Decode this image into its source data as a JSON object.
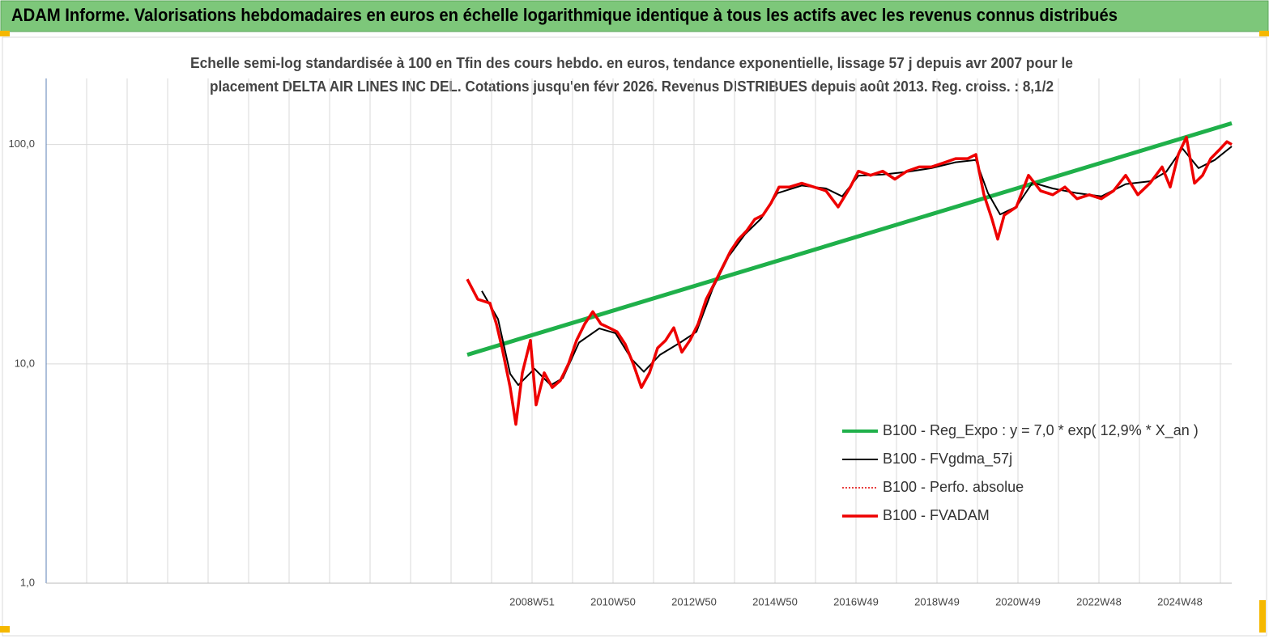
{
  "chart_data": {
    "type": "line",
    "title": "ADAM Informe. Valorisations hebdomadaires en euros en échelle logarithmique identique à tous les actifs avec les revenus connus distribués",
    "subtitle": [
      "Echelle semi-log standardisée à 100 en Tfin des cours hebdo. en euros, tendance exponentielle, lissage 57 j depuis avr 2007 pour le",
      "placement DELTA AIR LINES INC DEL. Cotations jusqu'en févr 2026. Revenus DISTRIBUES depuis août 2013. Reg. croiss. : 8,1/2"
    ],
    "log_y": true,
    "grid": true,
    "legend": "lower-right",
    "xlim": [
      1996.97,
      2026.25
    ],
    "ylim": [
      1,
      200
    ],
    "yticks": [
      {
        "value": 1,
        "label": "1,0"
      },
      {
        "value": 10,
        "label": "10,0"
      },
      {
        "value": 100,
        "label": "100,0"
      }
    ],
    "xticks": [
      {
        "value": 2008.97,
        "label": "2008W51"
      },
      {
        "value": 2010.97,
        "label": "2010W50"
      },
      {
        "value": 2012.97,
        "label": "2012W50"
      },
      {
        "value": 2014.97,
        "label": "2014W50"
      },
      {
        "value": 2016.97,
        "label": "2016W49"
      },
      {
        "value": 2018.97,
        "label": "2018W49"
      },
      {
        "value": 2020.97,
        "label": "2020W49"
      },
      {
        "value": 2022.97,
        "label": "2022W48"
      },
      {
        "value": 2024.97,
        "label": "2024W48"
      }
    ],
    "x_gridlines": [
      1997.97,
      1998.97,
      1999.97,
      2000.97,
      2001.97,
      2002.97,
      2003.97,
      2004.97,
      2005.97,
      2006.97,
      2007.97,
      2008.97,
      2009.97,
      2010.97,
      2011.97,
      2012.97,
      2013.97,
      2014.97,
      2015.97,
      2016.97,
      2017.97,
      2018.97,
      2019.97,
      2020.97,
      2021.97,
      2022.97,
      2023.97,
      2024.97,
      2025.97
    ],
    "series": [
      {
        "name": "B100 - Reg_Expo : y = 7,0 * exp( 12,9% *  X_an )",
        "color": "#1fb04a",
        "width": 5,
        "x": [
          2007.37,
          2026.25
        ],
        "values": [
          11,
          125
        ]
      },
      {
        "name": "B100 - FVgdma_57j",
        "color": "#000000",
        "width": 2,
        "x": [
          2007.73,
          2008.13,
          2008.43,
          2008.63,
          2009.03,
          2009.43,
          2009.73,
          2010.13,
          2010.63,
          2011.03,
          2011.43,
          2011.73,
          2012.13,
          2012.63,
          2013.03,
          2013.43,
          2013.83,
          2014.23,
          2014.63,
          2015.03,
          2015.63,
          2016.23,
          2016.63,
          2017.03,
          2017.63,
          2018.23,
          2018.83,
          2019.43,
          2019.93,
          2020.23,
          2020.53,
          2020.93,
          2021.33,
          2021.83,
          2022.43,
          2023.03,
          2023.63,
          2024.23,
          2024.63,
          2025.03,
          2025.43,
          2025.83,
          2026.25
        ],
        "values": [
          21.5,
          16,
          9,
          8,
          9.5,
          8,
          8.6,
          12.5,
          14.5,
          13.8,
          10.5,
          9.2,
          11,
          12.5,
          14,
          22,
          31,
          39,
          46,
          60,
          65,
          63,
          58,
          72,
          73,
          75,
          78,
          83,
          85,
          60,
          48,
          52,
          67,
          63,
          60,
          58,
          66,
          68,
          75,
          96,
          78,
          85,
          98
        ]
      },
      {
        "name": "B100 - Perfo. absolue",
        "color": "#e00000",
        "width": 1.5,
        "dash": "2 2",
        "x": [],
        "values": []
      },
      {
        "name": "B100 - FVADAM",
        "color": "#ee0000",
        "width": 3.5,
        "x": [
          2007.37,
          2007.63,
          2007.93,
          2008.09,
          2008.23,
          2008.43,
          2008.57,
          2008.73,
          2008.93,
          2009.07,
          2009.27,
          2009.47,
          2009.67,
          2009.87,
          2010.07,
          2010.27,
          2010.47,
          2010.67,
          2010.87,
          2011.07,
          2011.27,
          2011.47,
          2011.67,
          2011.87,
          2012.07,
          2012.27,
          2012.47,
          2012.67,
          2012.87,
          2013.07,
          2013.27,
          2013.47,
          2013.67,
          2013.87,
          2014.07,
          2014.27,
          2014.47,
          2014.67,
          2014.87,
          2015.07,
          2015.33,
          2015.63,
          2015.93,
          2016.23,
          2016.53,
          2016.83,
          2017.03,
          2017.33,
          2017.63,
          2017.93,
          2018.23,
          2018.53,
          2018.83,
          2019.13,
          2019.43,
          2019.73,
          2019.93,
          2020.13,
          2020.33,
          2020.47,
          2020.63,
          2020.93,
          2021.23,
          2021.53,
          2021.83,
          2022.13,
          2022.43,
          2022.73,
          2023.03,
          2023.33,
          2023.63,
          2023.93,
          2024.23,
          2024.53,
          2024.73,
          2024.93,
          2025.13,
          2025.33,
          2025.53,
          2025.73,
          2025.93,
          2026.13,
          2026.25
        ],
        "values": [
          24.3,
          19.7,
          18.9,
          15.2,
          11.8,
          7.8,
          5.3,
          9.1,
          12.8,
          6.5,
          9.1,
          7.8,
          8.4,
          10,
          12.8,
          15.2,
          17.3,
          15.2,
          14.6,
          14,
          12.3,
          10,
          7.8,
          9.1,
          11.8,
          12.8,
          14.6,
          11.3,
          12.8,
          15.2,
          19.7,
          23.2,
          27.5,
          32.6,
          37,
          40.4,
          45.6,
          47.6,
          54,
          64,
          64,
          66.6,
          64,
          61.5,
          51.9,
          64,
          75.6,
          72.4,
          75.6,
          69.5,
          75.6,
          79,
          79,
          82.4,
          86.2,
          86.2,
          90,
          59,
          45.6,
          37,
          47.6,
          51.9,
          72.4,
          61.5,
          59,
          64,
          56.6,
          59,
          56.6,
          61.5,
          72.4,
          59,
          66.6,
          79,
          64,
          90,
          108,
          66.6,
          72.4,
          86.2,
          94,
          103,
          100
        ]
      }
    ]
  }
}
